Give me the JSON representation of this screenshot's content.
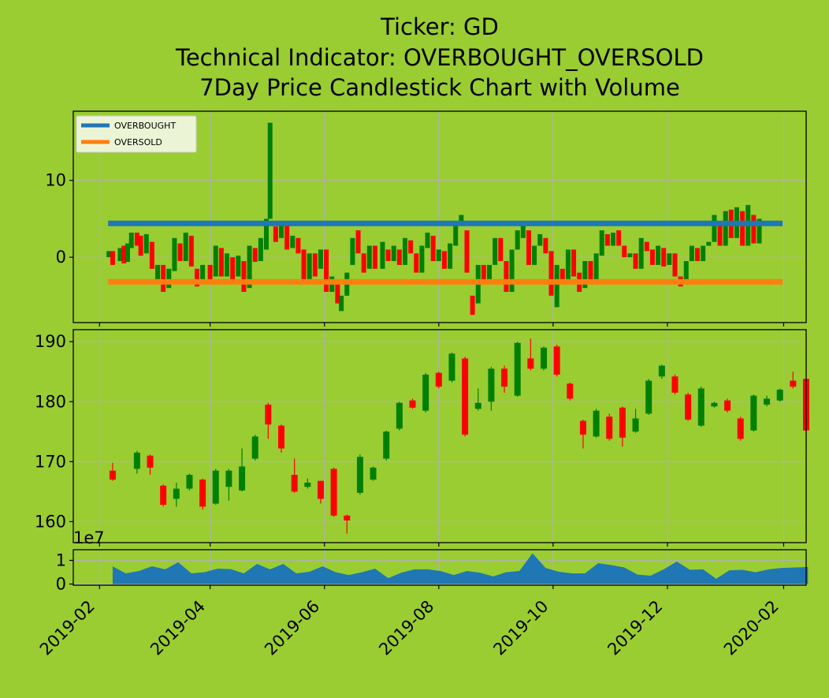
{
  "figure": {
    "background": "#9acd32",
    "title_lines": [
      "Ticker: GD",
      "Technical Indicator: OVERBOUGHT_OVERSOLD",
      "7Day Price Candlestick Chart with Volume"
    ]
  },
  "colors": {
    "up": "#008000",
    "down": "#ff0000",
    "overbought": "#1f77b4",
    "oversold": "#ff7f0e",
    "volume": "#1f77b4",
    "grid": "#b0b0b0"
  },
  "chart_data": [
    {
      "type": "candlestick",
      "panel": "indicator",
      "title": "",
      "legend": {
        "position": "top-left",
        "entries": [
          "OVERBOUGHT",
          "OVERSOLD"
        ]
      },
      "ylim": [
        -8.5,
        19
      ],
      "yticks": [
        0,
        10
      ],
      "grid": true,
      "reference_lines": [
        {
          "name": "OVERBOUGHT",
          "y": 4.4
        },
        {
          "name": "OVERSOLD",
          "y": -3.2
        }
      ],
      "series_summary": "daily change candles, green = rise, red = fall",
      "x_range": [
        "2019-02-06",
        "2020-01-31"
      ],
      "candles": [
        [
          "2019-02-06",
          0.0,
          0.8
        ],
        [
          "2019-02-08",
          0.8,
          -1.0
        ],
        [
          "2019-02-12",
          -0.5,
          1.2
        ],
        [
          "2019-02-14",
          1.5,
          -0.8
        ],
        [
          "2019-02-16",
          -0.6,
          1.8
        ],
        [
          "2019-02-18",
          1.2,
          3.2
        ],
        [
          "2019-02-21",
          3.2,
          1.5
        ],
        [
          "2019-02-23",
          2.8,
          0.2
        ],
        [
          "2019-02-26",
          0.5,
          3.0
        ],
        [
          "2019-03-01",
          2.0,
          -1.5
        ],
        [
          "2019-03-04",
          -3.0,
          -1.0
        ],
        [
          "2019-03-07",
          -1.0,
          -4.5
        ],
        [
          "2019-03-10",
          -4.0,
          -1.5
        ],
        [
          "2019-03-13",
          -1.8,
          2.5
        ],
        [
          "2019-03-16",
          1.8,
          -0.5
        ],
        [
          "2019-03-19",
          -0.5,
          3.2
        ],
        [
          "2019-03-22",
          2.8,
          -1.2
        ],
        [
          "2019-03-25",
          -1.5,
          -3.8
        ],
        [
          "2019-03-28",
          -3.0,
          -1.0
        ],
        [
          "2019-04-01",
          -1.0,
          -3.5
        ],
        [
          "2019-04-04",
          -2.5,
          1.5
        ],
        [
          "2019-04-07",
          1.2,
          -2.5
        ],
        [
          "2019-04-10",
          -2.5,
          0.5
        ],
        [
          "2019-04-13",
          0.0,
          -3.0
        ],
        [
          "2019-04-16",
          -2.5,
          0.2
        ],
        [
          "2019-04-19",
          -0.5,
          -4.5
        ],
        [
          "2019-04-22",
          -4.0,
          1.5
        ],
        [
          "2019-04-25",
          1.2,
          -0.6
        ],
        [
          "2019-04-28",
          -0.5,
          2.5
        ],
        [
          "2019-05-01",
          1.0,
          5.0
        ],
        [
          "2019-05-03",
          5.0,
          17.5
        ],
        [
          "2019-05-06",
          4.0,
          2.0
        ],
        [
          "2019-05-09",
          2.5,
          4.5
        ],
        [
          "2019-05-12",
          4.5,
          1.0
        ],
        [
          "2019-05-15",
          1.2,
          2.8
        ],
        [
          "2019-05-18",
          2.5,
          0.5
        ],
        [
          "2019-05-21",
          1.0,
          -3.5
        ],
        [
          "2019-05-24",
          -3.0,
          0.5
        ],
        [
          "2019-05-27",
          0.5,
          -2.5
        ],
        [
          "2019-05-30",
          -1.5,
          1.0
        ],
        [
          "2019-06-02",
          1.0,
          -4.5
        ],
        [
          "2019-06-05",
          -4.5,
          -2.5
        ],
        [
          "2019-06-08",
          -3.0,
          -6.0
        ],
        [
          "2019-06-10",
          -7.0,
          -5.0
        ],
        [
          "2019-06-13",
          -5.0,
          -2.0
        ],
        [
          "2019-06-16",
          -1.0,
          2.5
        ],
        [
          "2019-06-19",
          3.5,
          0.5
        ],
        [
          "2019-06-22",
          0.5,
          -2.0
        ],
        [
          "2019-06-25",
          -1.5,
          1.5
        ],
        [
          "2019-06-28",
          1.5,
          -1.5
        ],
        [
          "2019-07-02",
          -1.5,
          2.0
        ],
        [
          "2019-07-05",
          1.0,
          -0.5
        ],
        [
          "2019-07-08",
          -0.5,
          1.5
        ],
        [
          "2019-07-11",
          1.0,
          -1.0
        ],
        [
          "2019-07-14",
          -1.0,
          2.5
        ],
        [
          "2019-07-17",
          2.2,
          0.5
        ],
        [
          "2019-07-20",
          0.5,
          -2.0
        ],
        [
          "2019-07-23",
          -2.0,
          1.5
        ],
        [
          "2019-07-26",
          1.2,
          3.2
        ],
        [
          "2019-07-29",
          2.8,
          -0.5
        ],
        [
          "2019-08-01",
          -0.5,
          1.0
        ],
        [
          "2019-08-04",
          0.8,
          -1.5
        ],
        [
          "2019-08-07",
          -1.5,
          1.8
        ],
        [
          "2019-08-10",
          1.5,
          4.5
        ],
        [
          "2019-08-13",
          4.5,
          5.5
        ],
        [
          "2019-08-16",
          3.5,
          -2.0
        ],
        [
          "2019-08-19",
          -5.0,
          -7.5
        ],
        [
          "2019-08-22",
          -6.0,
          -1.0
        ],
        [
          "2019-08-25",
          -1.0,
          -3.5
        ],
        [
          "2019-08-28",
          -3.0,
          -1.0
        ],
        [
          "2019-08-31",
          -1.0,
          2.5
        ],
        [
          "2019-09-03",
          2.5,
          -0.5
        ],
        [
          "2019-09-06",
          -0.5,
          -4.5
        ],
        [
          "2019-09-09",
          -4.5,
          1.0
        ],
        [
          "2019-09-12",
          1.0,
          3.5
        ],
        [
          "2019-09-15",
          2.5,
          4.5
        ],
        [
          "2019-09-18",
          3.5,
          -1.0
        ],
        [
          "2019-09-21",
          -1.0,
          1.5
        ],
        [
          "2019-09-24",
          1.5,
          3.0
        ],
        [
          "2019-09-27",
          2.5,
          0.5
        ],
        [
          "2019-09-30",
          0.8,
          -5.0
        ],
        [
          "2019-10-03",
          -6.5,
          -1.0
        ],
        [
          "2019-10-06",
          -1.5,
          -3.5
        ],
        [
          "2019-10-09",
          -3.0,
          1.0
        ],
        [
          "2019-10-12",
          1.0,
          -2.5
        ],
        [
          "2019-10-15",
          -2.0,
          -4.5
        ],
        [
          "2019-10-18",
          -4.0,
          -0.5
        ],
        [
          "2019-10-21",
          -0.5,
          -3.0
        ],
        [
          "2019-10-24",
          -3.0,
          0.5
        ],
        [
          "2019-10-27",
          0.2,
          3.5
        ],
        [
          "2019-10-30",
          3.0,
          1.5
        ],
        [
          "2019-11-02",
          1.5,
          3.2
        ],
        [
          "2019-11-05",
          3.5,
          1.5
        ],
        [
          "2019-11-08",
          1.5,
          0.0
        ],
        [
          "2019-11-11",
          0.0,
          0.5
        ],
        [
          "2019-11-14",
          0.5,
          -1.5
        ],
        [
          "2019-11-17",
          -1.5,
          2.5
        ],
        [
          "2019-11-20",
          2.0,
          0.8
        ],
        [
          "2019-11-23",
          1.0,
          -1.0
        ],
        [
          "2019-11-26",
          -1.0,
          1.5
        ],
        [
          "2019-11-29",
          1.2,
          -1.2
        ],
        [
          "2019-12-02",
          -1.0,
          0.5
        ],
        [
          "2019-12-05",
          0.5,
          -2.5
        ],
        [
          "2019-12-08",
          -2.5,
          -3.8
        ],
        [
          "2019-12-11",
          -3.5,
          -0.5
        ],
        [
          "2019-12-14",
          -0.5,
          1.5
        ],
        [
          "2019-12-17",
          1.2,
          -0.5
        ],
        [
          "2019-12-20",
          -0.5,
          1.5
        ],
        [
          "2019-12-23",
          1.5,
          2.0
        ],
        [
          "2019-12-26",
          2.0,
          5.5
        ],
        [
          "2019-12-29",
          4.5,
          1.5
        ],
        [
          "2020-01-01",
          1.5,
          6.0
        ],
        [
          "2020-01-04",
          6.2,
          2.5
        ],
        [
          "2020-01-07",
          2.5,
          6.5
        ],
        [
          "2020-01-10",
          6.0,
          1.5
        ],
        [
          "2020-01-13",
          1.5,
          6.8
        ],
        [
          "2020-01-16",
          5.5,
          1.8
        ],
        [
          "2020-01-19",
          1.8,
          5.0
        ]
      ]
    },
    {
      "type": "candlestick",
      "panel": "price",
      "title": "",
      "ylim": [
        156.5,
        192
      ],
      "yticks": [
        160,
        170,
        180,
        190
      ],
      "grid": true,
      "x_range": [
        "2019-02-06",
        "2020-01-31"
      ],
      "candles": [
        [
          "2019-02-08",
          168.5,
          167.0,
          169.8,
          166.8
        ],
        [
          "2019-02-21",
          168.8,
          171.5,
          171.8,
          168.0
        ],
        [
          "2019-02-28",
          171.0,
          169.0,
          171.2,
          167.8
        ],
        [
          "2019-03-07",
          166.0,
          162.8,
          166.2,
          162.5
        ],
        [
          "2019-03-14",
          163.8,
          165.5,
          166.5,
          162.5
        ],
        [
          "2019-03-21",
          165.5,
          167.8,
          168.0,
          165.2
        ],
        [
          "2019-03-28",
          167.0,
          162.5,
          167.2,
          162.0
        ],
        [
          "2019-04-04",
          163.0,
          168.5,
          168.8,
          162.8
        ],
        [
          "2019-04-11",
          165.8,
          168.5,
          168.8,
          163.5
        ],
        [
          "2019-04-18",
          165.2,
          169.2,
          172.2,
          165.0
        ],
        [
          "2019-04-25",
          170.5,
          174.2,
          174.5,
          170.2
        ],
        [
          "2019-05-02",
          179.5,
          176.2,
          179.8,
          173.8
        ],
        [
          "2019-05-09",
          176.0,
          172.2,
          176.2,
          171.5
        ],
        [
          "2019-05-16",
          167.8,
          165.0,
          170.5,
          164.8
        ],
        [
          "2019-05-23",
          165.8,
          166.5,
          167.2,
          165.5
        ],
        [
          "2019-05-30",
          166.8,
          163.8,
          166.8,
          163.0
        ],
        [
          "2019-06-06",
          168.8,
          161.0,
          169.0,
          160.8
        ],
        [
          "2019-06-13",
          161.0,
          160.2,
          161.2,
          158.0
        ],
        [
          "2019-06-20",
          164.8,
          170.8,
          171.2,
          164.5
        ],
        [
          "2019-06-27",
          167.0,
          169.0,
          169.2,
          166.8
        ],
        [
          "2019-07-04",
          170.5,
          175.0,
          175.2,
          170.2
        ],
        [
          "2019-07-11",
          175.5,
          179.8,
          180.0,
          175.2
        ],
        [
          "2019-07-18",
          180.2,
          179.0,
          180.5,
          178.8
        ],
        [
          "2019-07-25",
          178.5,
          184.5,
          184.8,
          178.2
        ],
        [
          "2019-08-01",
          184.8,
          182.5,
          185.0,
          182.2
        ],
        [
          "2019-08-08",
          183.5,
          188.0,
          188.2,
          183.2
        ],
        [
          "2019-08-15",
          187.2,
          174.5,
          187.5,
          174.2
        ],
        [
          "2019-08-22",
          178.8,
          179.8,
          182.2,
          178.5
        ],
        [
          "2019-08-29",
          180.0,
          185.5,
          185.8,
          178.5
        ],
        [
          "2019-09-05",
          185.5,
          182.5,
          186.0,
          181.5
        ],
        [
          "2019-09-12",
          181.0,
          189.8,
          190.0,
          180.8
        ],
        [
          "2019-09-19",
          187.2,
          185.5,
          190.5,
          185.2
        ],
        [
          "2019-09-26",
          185.5,
          189.0,
          189.2,
          185.2
        ],
        [
          "2019-10-03",
          189.2,
          184.5,
          189.5,
          184.2
        ],
        [
          "2019-10-10",
          183.0,
          180.5,
          183.2,
          180.2
        ],
        [
          "2019-10-17",
          176.8,
          174.5,
          177.0,
          172.2
        ],
        [
          "2019-10-24",
          174.2,
          178.5,
          178.8,
          174.0
        ],
        [
          "2019-10-31",
          177.5,
          173.8,
          178.0,
          173.5
        ],
        [
          "2019-11-07",
          179.0,
          174.0,
          179.2,
          172.5
        ],
        [
          "2019-11-14",
          175.0,
          177.2,
          178.8,
          174.8
        ],
        [
          "2019-11-21",
          178.0,
          183.5,
          183.8,
          177.8
        ],
        [
          "2019-11-28",
          184.2,
          186.0,
          186.2,
          183.8
        ],
        [
          "2019-12-05",
          184.2,
          181.5,
          184.5,
          181.2
        ],
        [
          "2019-12-12",
          181.2,
          177.0,
          181.5,
          176.8
        ],
        [
          "2019-12-19",
          176.0,
          182.2,
          182.5,
          175.8
        ],
        [
          "2019-12-26",
          179.2,
          179.8,
          180.0,
          179.0
        ],
        [
          "2020-01-02",
          180.2,
          178.5,
          180.5,
          178.2
        ],
        [
          "2020-01-09",
          177.2,
          173.8,
          177.5,
          173.5
        ],
        [
          "2020-01-16",
          175.2,
          181.0,
          181.2,
          175.0
        ],
        [
          "2020-01-23",
          179.5,
          180.5,
          181.0,
          179.2
        ],
        [
          "2020-01-30",
          180.2,
          182.0,
          182.2,
          180.0
        ],
        [
          "2020-02-06",
          183.5,
          182.5,
          185.0,
          182.2
        ],
        [
          "2020-02-13",
          183.8,
          175.2,
          184.0,
          175.0
        ]
      ]
    },
    {
      "type": "area",
      "panel": "volume",
      "title": "",
      "scale_label": "1e7",
      "ylim": [
        -0.05,
        1.45
      ],
      "yticks": [
        0,
        1
      ],
      "grid": true,
      "x": [
        "2019-02-08",
        "2019-02-15",
        "2019-02-22",
        "2019-03-01",
        "2019-03-08",
        "2019-03-15",
        "2019-03-22",
        "2019-03-29",
        "2019-04-05",
        "2019-04-12",
        "2019-04-19",
        "2019-04-26",
        "2019-05-03",
        "2019-05-10",
        "2019-05-17",
        "2019-05-24",
        "2019-05-31",
        "2019-06-07",
        "2019-06-14",
        "2019-06-21",
        "2019-06-28",
        "2019-07-05",
        "2019-07-12",
        "2019-07-19",
        "2019-07-26",
        "2019-08-02",
        "2019-08-09",
        "2019-08-16",
        "2019-08-23",
        "2019-08-30",
        "2019-09-06",
        "2019-09-13",
        "2019-09-20",
        "2019-09-27",
        "2019-10-04",
        "2019-10-11",
        "2019-10-18",
        "2019-10-25",
        "2019-11-01",
        "2019-11-08",
        "2019-11-15",
        "2019-11-22",
        "2019-11-29",
        "2019-12-06",
        "2019-12-13",
        "2019-12-20",
        "2019-12-27",
        "2020-01-03",
        "2020-01-10",
        "2020-01-17",
        "2020-01-24",
        "2020-01-31",
        "2020-02-07",
        "2020-02-14"
      ],
      "values": [
        0.75,
        0.45,
        0.55,
        0.75,
        0.62,
        0.92,
        0.45,
        0.5,
        0.65,
        0.63,
        0.45,
        0.85,
        0.62,
        0.85,
        0.45,
        0.52,
        0.75,
        0.5,
        0.38,
        0.5,
        0.65,
        0.25,
        0.48,
        0.62,
        0.62,
        0.55,
        0.38,
        0.55,
        0.48,
        0.32,
        0.5,
        0.55,
        1.3,
        0.68,
        0.52,
        0.45,
        0.45,
        0.88,
        0.8,
        0.7,
        0.4,
        0.35,
        0.62,
        0.95,
        0.6,
        0.62,
        0.22,
        0.58,
        0.6,
        0.5,
        0.62,
        0.68,
        0.7,
        0.72
      ]
    }
  ],
  "x_axis": {
    "range": [
      "2019-01-18",
      "2020-02-13"
    ],
    "ticks": [
      "2019-02-01",
      "2019-04-01",
      "2019-06-01",
      "2019-08-01",
      "2019-10-01",
      "2019-12-01",
      "2020-02-01"
    ],
    "tick_labels": [
      "2019-02",
      "2019-04",
      "2019-06",
      "2019-08",
      "2019-10",
      "2019-12",
      "2020-02"
    ]
  }
}
